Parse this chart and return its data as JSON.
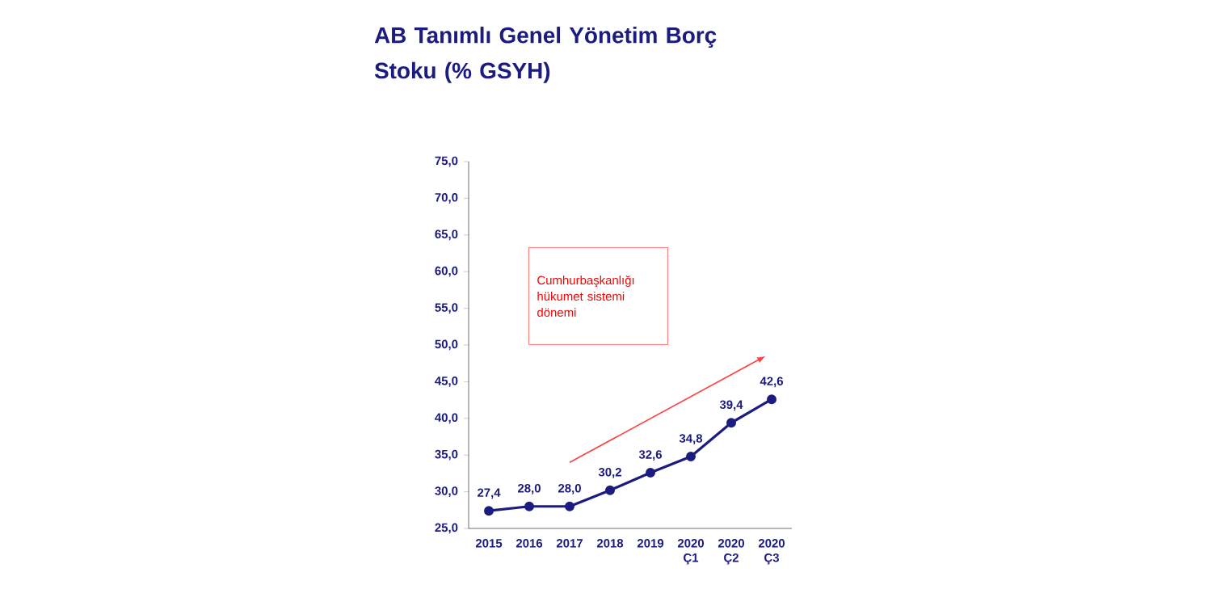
{
  "chart_data": {
    "type": "line",
    "title": "AB Tanımlı Genel Yönetim Borç Stoku (% GSYH)",
    "categories": [
      "2015",
      "2016",
      "2017",
      "2018",
      "2019",
      "2020 Ç1",
      "2020 Ç2",
      "2020 Ç3"
    ],
    "series": [
      {
        "color": "#1c1c80",
        "values": [
          27.4,
          28.0,
          28.0,
          30.2,
          32.6,
          34.8,
          39.4,
          42.6
        ],
        "value_labels": [
          "27,4",
          "28,0",
          "28,0",
          "30,2",
          "32,6",
          "34,8",
          "39,4",
          "42,6"
        ]
      }
    ],
    "ylim": [
      25,
      75
    ],
    "yticks": [
      {
        "value": 25,
        "label": "25,0"
      },
      {
        "value": 30,
        "label": "30,0"
      },
      {
        "value": 35,
        "label": "35,0"
      },
      {
        "value": 40,
        "label": "40,0"
      },
      {
        "value": 45,
        "label": "45,0"
      },
      {
        "value": 50,
        "label": "50,0"
      },
      {
        "value": 55,
        "label": "55,0"
      },
      {
        "value": 60,
        "label": "60,0"
      },
      {
        "value": 65,
        "label": "65,0"
      },
      {
        "value": 70,
        "label": "70,0"
      },
      {
        "value": 75,
        "label": "75,0"
      }
    ],
    "annotations": [
      "Cumhurbaşkanlığı hükumet sistemi dönemi"
    ],
    "marker": "circle",
    "line_style": "solid",
    "grid": false
  }
}
